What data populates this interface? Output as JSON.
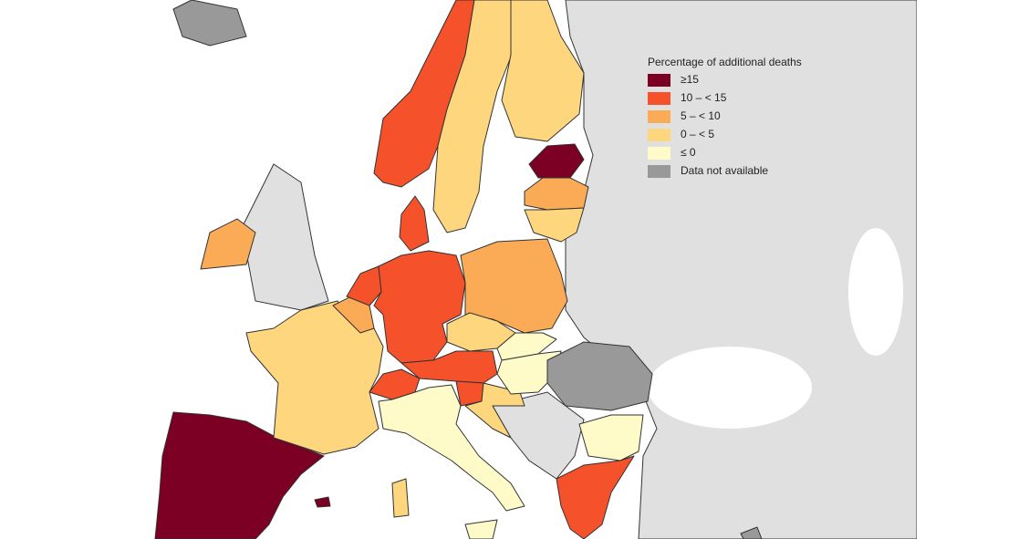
{
  "legend": {
    "title": "Percentage of additional deaths",
    "items": [
      {
        "label": "≥15",
        "color": "#7b0023"
      },
      {
        "label": "10 – < 15",
        "color": "#f5512a"
      },
      {
        "label": "5 – < 10",
        "color": "#fbab55"
      },
      {
        "label": "0 – < 5",
        "color": "#fdd67e"
      },
      {
        "label": "≤ 0",
        "color": "#fefbc9"
      },
      {
        "label": "Data not available",
        "color": "#999999"
      }
    ]
  }
}
